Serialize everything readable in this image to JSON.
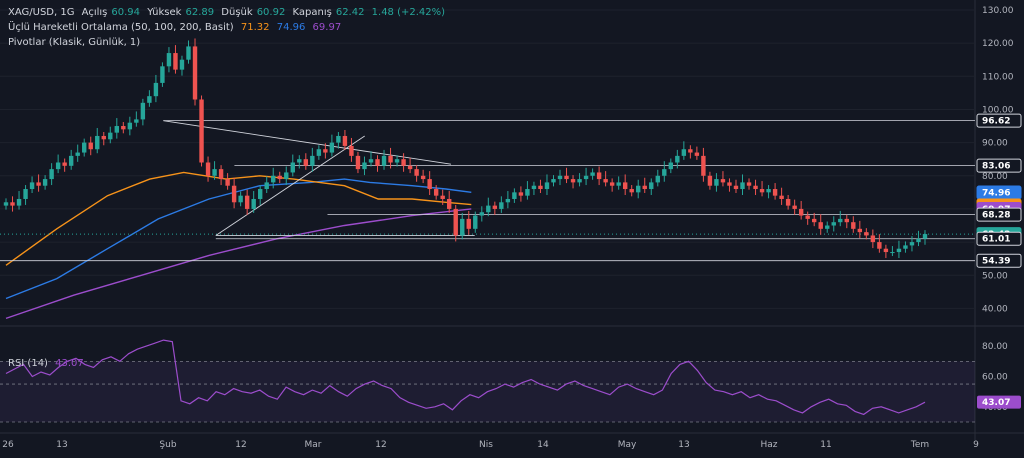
{
  "header": {
    "symbol": "XAG/USD, 1G",
    "open_label": "Açılış",
    "open_value": "60.94",
    "high_label": "Yüksek",
    "high_value": "62.89",
    "low_label": "Düşük",
    "low_value": "60.92",
    "close_label": "Kapanış",
    "close_value": "62.42",
    "change": "1.48 (+2.42%)"
  },
  "indicators": {
    "ma_label": "Üçlü Hareketli Ortalama (50, 100, 200, Basit)",
    "ma50": "71.32",
    "ma100": "74.96",
    "ma200": "69.97",
    "pivot_label": "Pivotlar (Klasik, Günlük, 1)",
    "rsi_label": "RSI (14)",
    "rsi_value": "43.07"
  },
  "colors": {
    "up": "#26a69a",
    "down": "#ef5350",
    "ma50": "#f7931a",
    "ma100": "#2c7be5",
    "ma200": "#9c4dcc",
    "rsi": "#9c4dcc",
    "background": "#131722",
    "axis_text": "#b2b5be"
  },
  "chart_data": [
    {
      "type": "candlestick",
      "title": "XAG/USD, 1G",
      "y_axis_ticks": [
        130,
        120,
        110,
        100,
        90,
        80,
        70,
        60,
        50,
        40
      ],
      "ylim": [
        35,
        133
      ],
      "x_axis_labels": [
        "26",
        "13",
        "Şub",
        "12",
        "Mar",
        "12",
        "Nis",
        "14",
        "May",
        "13",
        "Haz",
        "11",
        "Tem",
        "9"
      ],
      "price_badges": [
        {
          "value": "96.62",
          "kind": "pivot"
        },
        {
          "value": "83.06",
          "kind": "pivot"
        },
        {
          "value": "74.96",
          "kind": "ma100"
        },
        {
          "value": "71.32",
          "kind": "ma50"
        },
        {
          "value": "69.97",
          "kind": "ma200"
        },
        {
          "value": "68.28",
          "kind": "pivot"
        },
        {
          "value": "62.42",
          "kind": "last"
        },
        {
          "value": "61.01",
          "kind": "pivot"
        },
        {
          "value": "54.39",
          "kind": "pivot"
        }
      ],
      "pivot_levels": [
        96.62,
        83.06,
        68.28,
        61.01,
        54.39
      ],
      "close_series": [
        72,
        71,
        73,
        76,
        78,
        77,
        79,
        82,
        84,
        83,
        86,
        87,
        90,
        88,
        92,
        91,
        93,
        95,
        94,
        96,
        97,
        102,
        104,
        108,
        113,
        117,
        112,
        115,
        119,
        103,
        84,
        80,
        82,
        79,
        77,
        72,
        74,
        70,
        73,
        76,
        78,
        80,
        79,
        81,
        84,
        85,
        83,
        86,
        88,
        87,
        90,
        92,
        89,
        86,
        82,
        84,
        85,
        83,
        86,
        84,
        85,
        83,
        82,
        80,
        79,
        76,
        74,
        73,
        70,
        62,
        67,
        64,
        68,
        69,
        71,
        70,
        72,
        73,
        75,
        74,
        76,
        77,
        76,
        78,
        79,
        80,
        79,
        78,
        79,
        80,
        81,
        79,
        78,
        77,
        78,
        76,
        75,
        77,
        76,
        78,
        80,
        82,
        84,
        86,
        88,
        87,
        86,
        80,
        77,
        79,
        78,
        77,
        76,
        78,
        77,
        76,
        75,
        76,
        74,
        73,
        71,
        70,
        68,
        67,
        66,
        64,
        65,
        66,
        67,
        66,
        64,
        63,
        62,
        60,
        58,
        57,
        57,
        58,
        59,
        60,
        61,
        62.42
      ],
      "ma50_series": [
        [
          0,
          53
        ],
        [
          30,
          64
        ],
        [
          60,
          74
        ],
        [
          85,
          79
        ],
        [
          105,
          81
        ],
        [
          130,
          79
        ],
        [
          150,
          80
        ],
        [
          170,
          79
        ],
        [
          200,
          77
        ],
        [
          220,
          73
        ],
        [
          240,
          73
        ],
        [
          260,
          72
        ],
        [
          275,
          71.3
        ]
      ],
      "ma100_series": [
        [
          0,
          43
        ],
        [
          30,
          49
        ],
        [
          60,
          58
        ],
        [
          90,
          67
        ],
        [
          120,
          73
        ],
        [
          150,
          77
        ],
        [
          180,
          78
        ],
        [
          200,
          79
        ],
        [
          215,
          78
        ],
        [
          240,
          77
        ],
        [
          260,
          76
        ],
        [
          275,
          75
        ]
      ],
      "ma200_series": [
        [
          0,
          37
        ],
        [
          40,
          44
        ],
        [
          80,
          50
        ],
        [
          120,
          56
        ],
        [
          160,
          61
        ],
        [
          200,
          65
        ],
        [
          240,
          68
        ],
        [
          275,
          70
        ]
      ],
      "trendlines": [
        {
          "from": [
            93,
            96.6
          ],
          "to": [
            263,
            83.5
          ]
        },
        {
          "from": [
            124,
            62
          ],
          "to": [
            212,
            92
          ]
        },
        {
          "from": [
            124,
            62
          ],
          "to": [
            277,
            62
          ]
        }
      ]
    },
    {
      "type": "line",
      "title": "RSI (14)",
      "y_axis_ticks": [
        80,
        60,
        40
      ],
      "ylim": [
        28,
        92
      ],
      "bands": [
        70,
        55,
        30
      ],
      "values": [
        62,
        65,
        68,
        60,
        63,
        61,
        66,
        70,
        72,
        68,
        66,
        71,
        73,
        70,
        75,
        78,
        80,
        82,
        84,
        83,
        44,
        42,
        46,
        44,
        50,
        48,
        52,
        50,
        49,
        51,
        47,
        45,
        53,
        50,
        48,
        51,
        49,
        54,
        50,
        47,
        52,
        55,
        57,
        54,
        52,
        46,
        43,
        41,
        39,
        40,
        42,
        38,
        44,
        48,
        46,
        50,
        52,
        55,
        53,
        56,
        58,
        55,
        53,
        51,
        55,
        57,
        54,
        52,
        50,
        48,
        53,
        55,
        52,
        50,
        48,
        51,
        62,
        68,
        70,
        64,
        56,
        51,
        50,
        48,
        50,
        46,
        48,
        45,
        44,
        41,
        38,
        36,
        40,
        43,
        45,
        42,
        41,
        37,
        35,
        39,
        40,
        38,
        36,
        38,
        40,
        43.07
      ],
      "current_badge": "43.07"
    }
  ]
}
